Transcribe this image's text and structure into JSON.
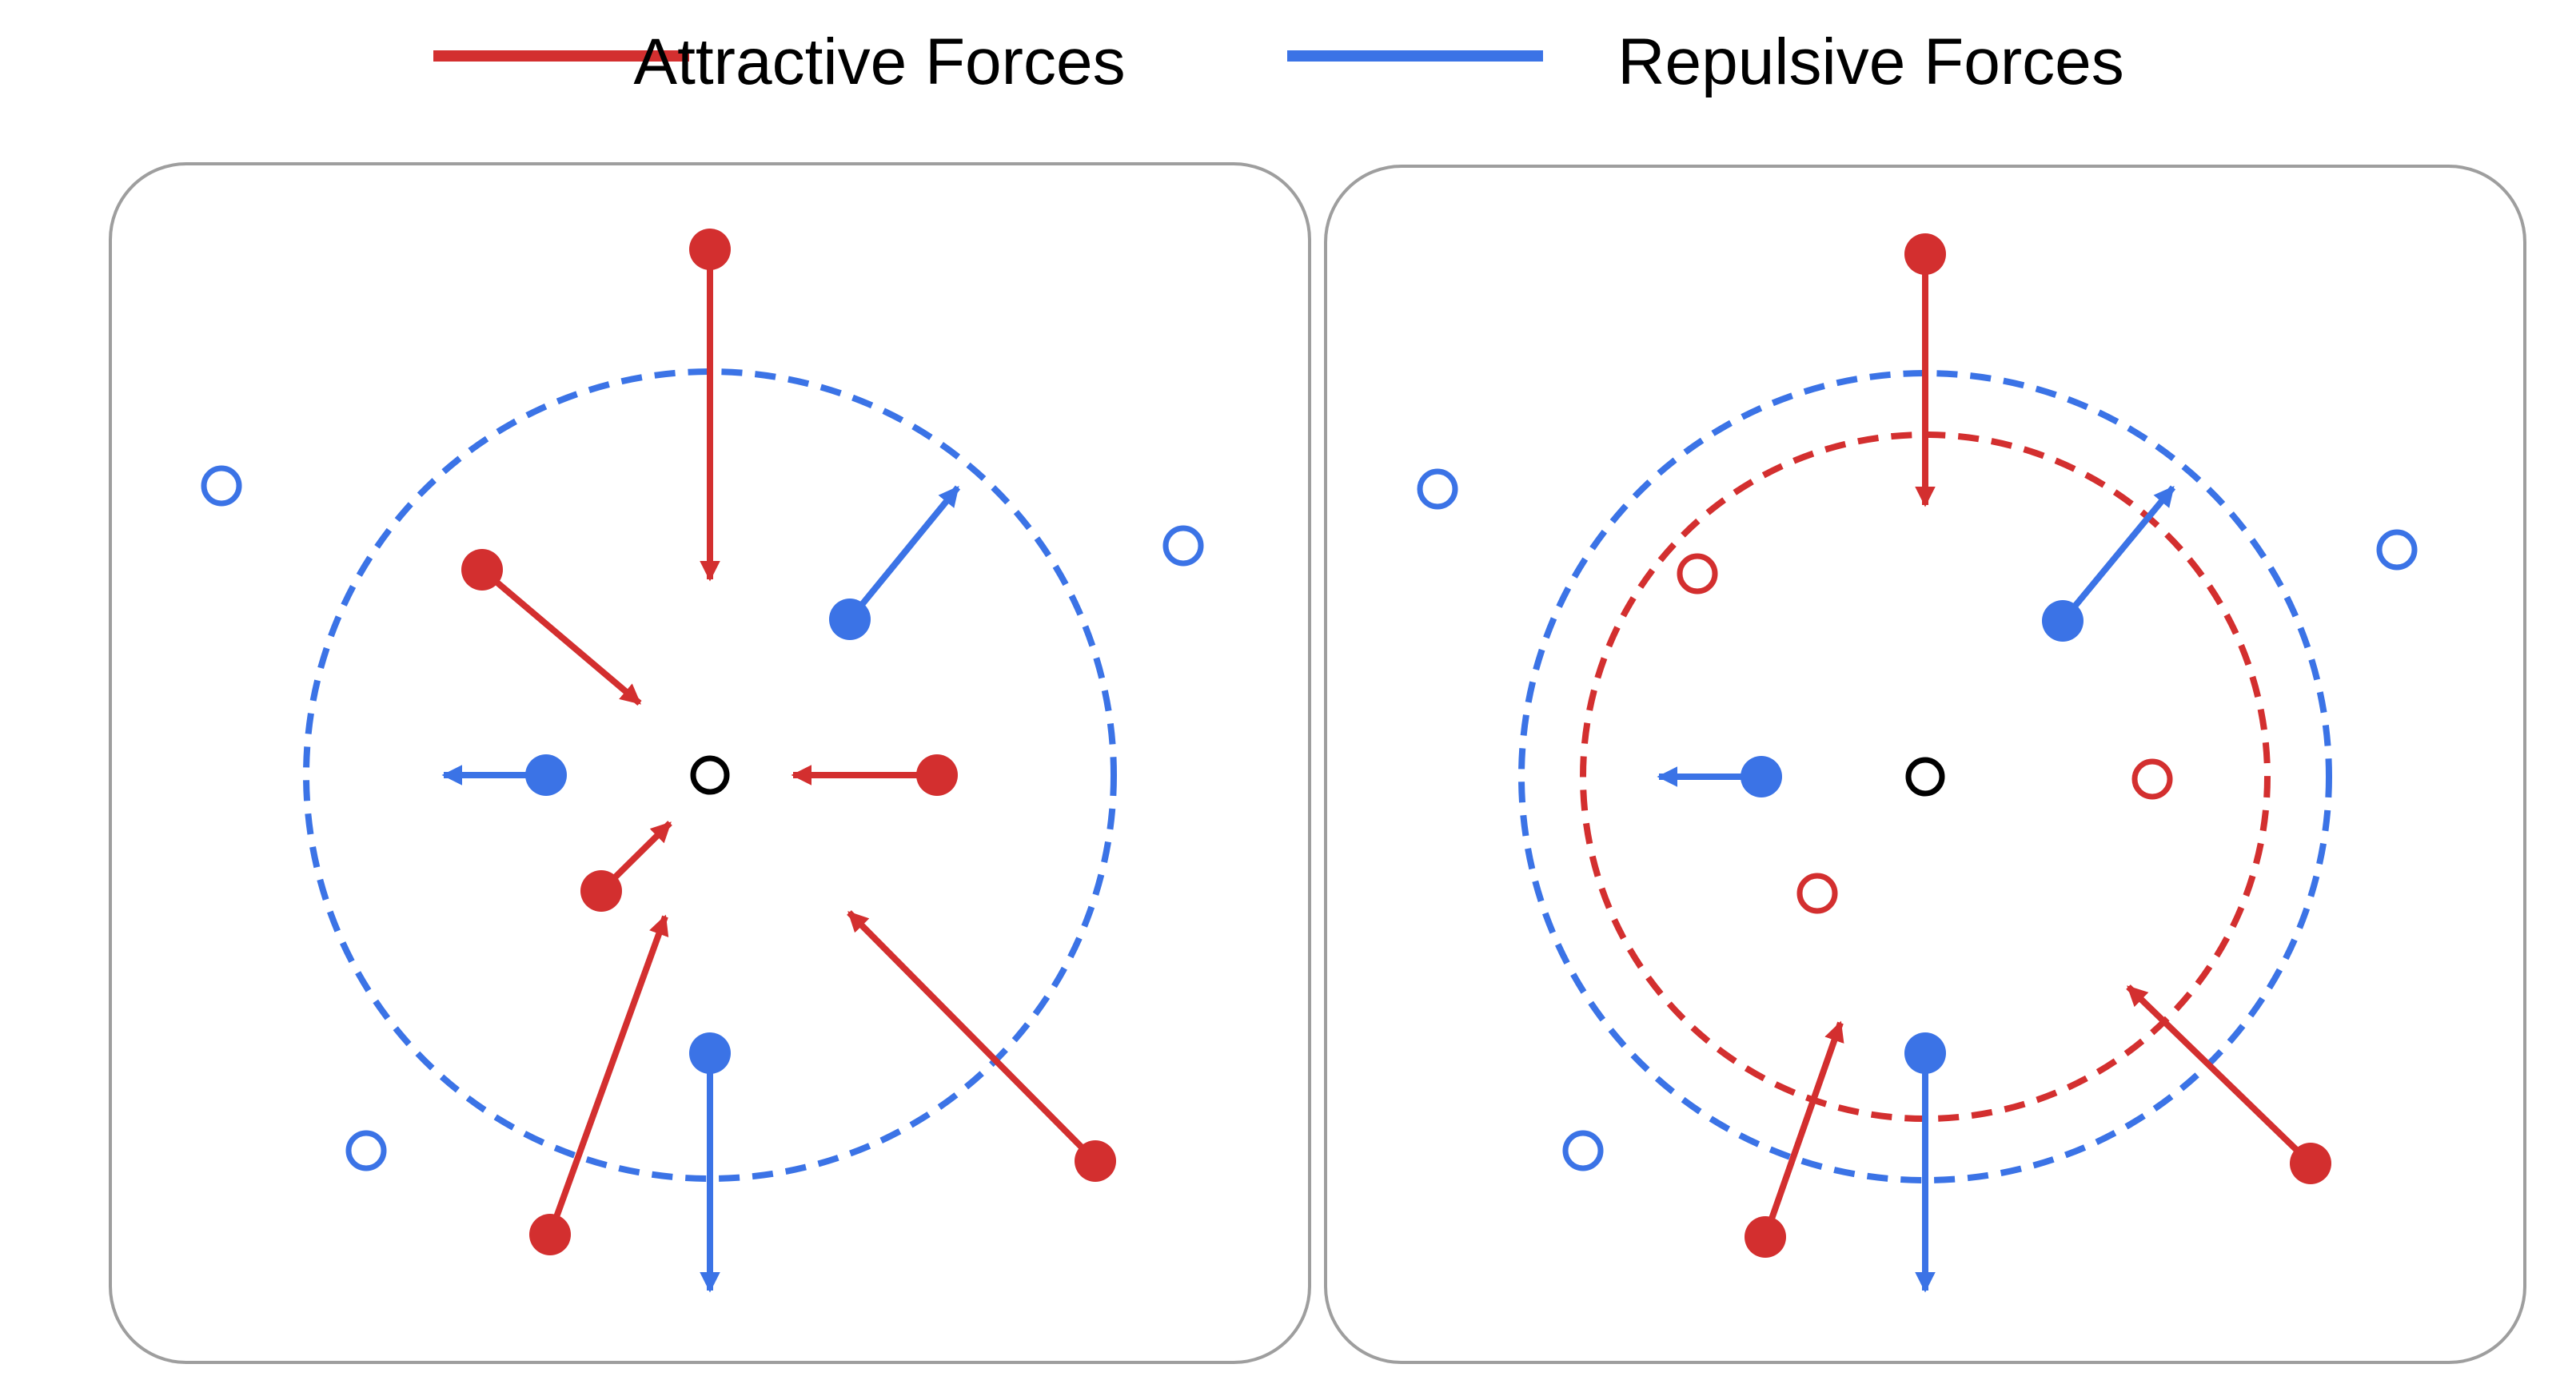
{
  "legend": {
    "items": [
      {
        "label": "Attractive Forces",
        "color": "#d32f2f"
      },
      {
        "label": "Repulsive Forces",
        "color": "#3b73e6"
      }
    ]
  },
  "colors": {
    "attractive": "#d32f2f",
    "repulsive": "#3b73e6",
    "center": "#000000",
    "panel_border": "#9e9e9e"
  },
  "panels": [
    {
      "id": "left",
      "description": ""
    },
    {
      "id": "right",
      "description": ""
    }
  ]
}
